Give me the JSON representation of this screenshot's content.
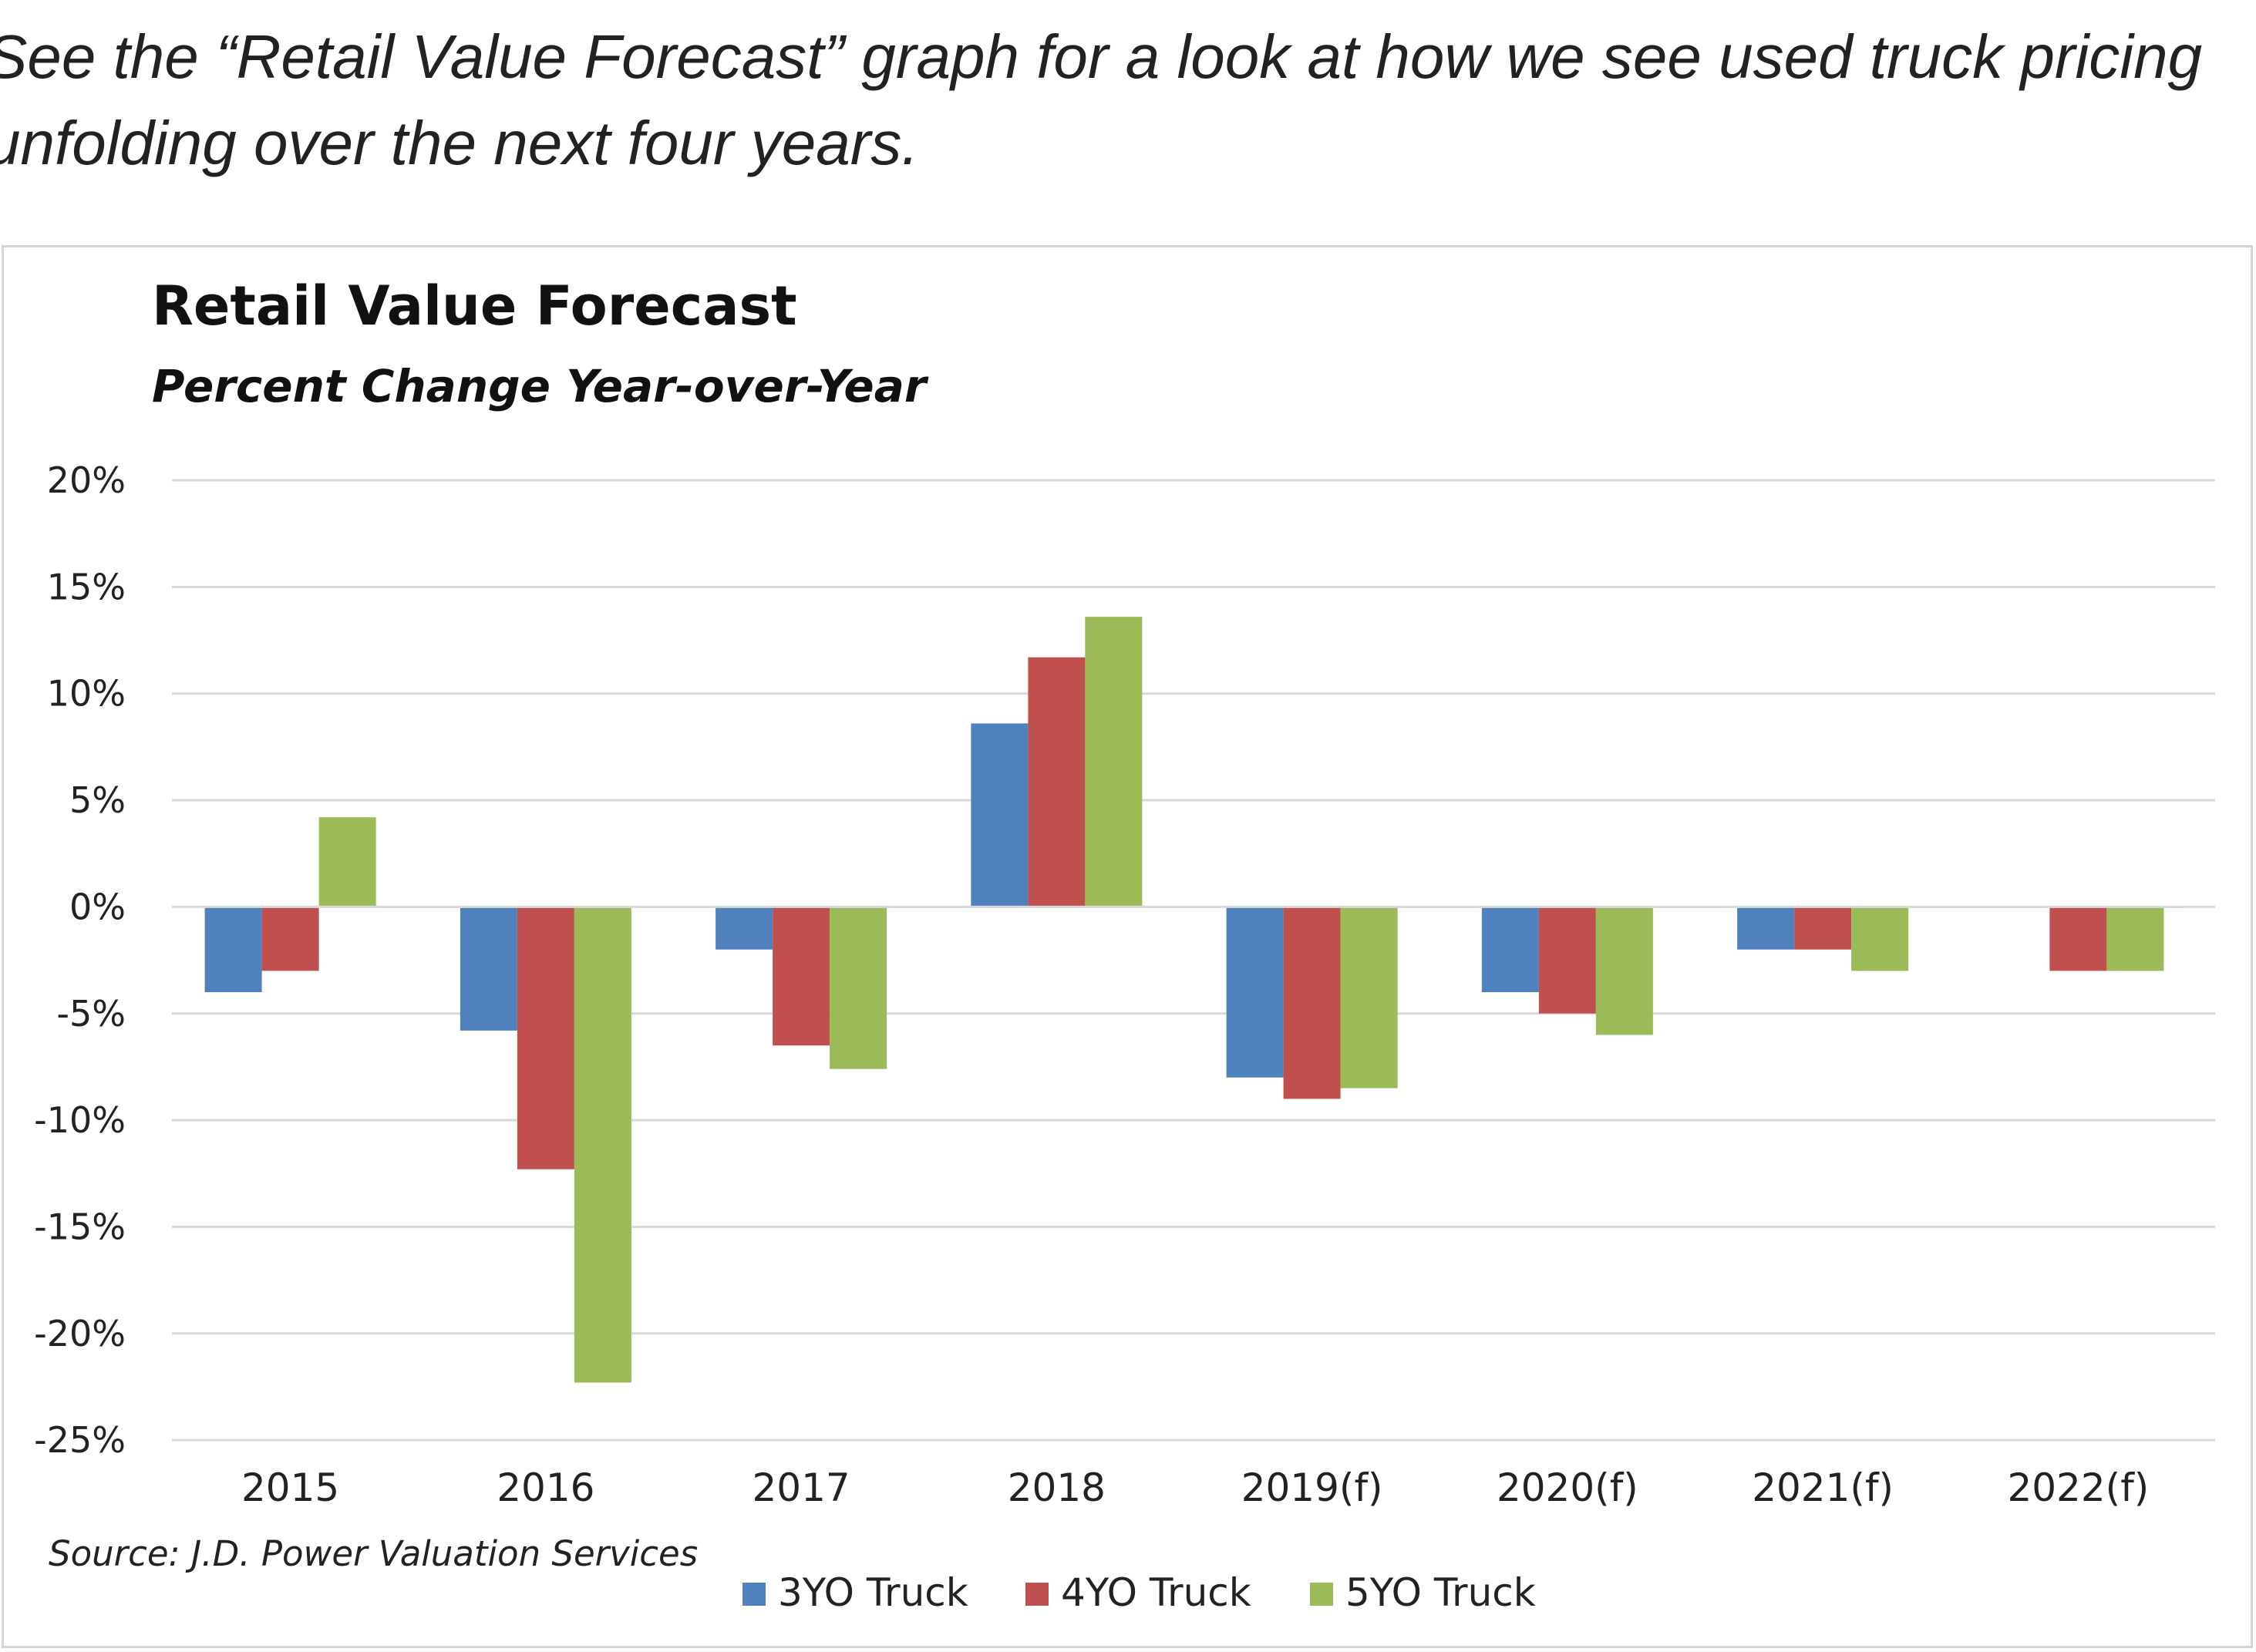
{
  "intro": {
    "line1": "See the “Retail Value Forecast” graph for a look at how we see used truck pricing",
    "line2": "unfolding over the next four years."
  },
  "chart_data": {
    "type": "bar",
    "title": "Retail Value Forecast",
    "subtitle": "Percent Change Year-over-Year",
    "source": "Source: J.D. Power Valuation Services",
    "categories": [
      "2015",
      "2016",
      "2017",
      "2018",
      "2019(f)",
      "2020(f)",
      "2021(f)",
      "2022(f)"
    ],
    "series": [
      {
        "name": "3YO Truck",
        "color": "#4f81bd",
        "values": [
          -4,
          -5.8,
          -2,
          8.6,
          -8,
          -4,
          -2,
          null
        ]
      },
      {
        "name": "4YO Truck",
        "color": "#c0504d",
        "values": [
          -3,
          -12.3,
          -6.5,
          11.7,
          -9,
          -5,
          -2,
          -3
        ]
      },
      {
        "name": "5YO Truck",
        "color": "#9bbb59",
        "values": [
          4.2,
          -22.3,
          -7.6,
          13.6,
          -8.5,
          -6,
          -3,
          -3
        ]
      }
    ],
    "ylim": [
      -25,
      20
    ],
    "yticks": [
      20,
      15,
      10,
      5,
      0,
      -5,
      -10,
      -15,
      -20,
      -25
    ],
    "ytick_labels": [
      "20%",
      "15%",
      "10%",
      "5%",
      "0%",
      "-5%",
      "-10%",
      "-15%",
      "-20%",
      "-25%"
    ],
    "grid": true,
    "legend_position": "bottom"
  }
}
